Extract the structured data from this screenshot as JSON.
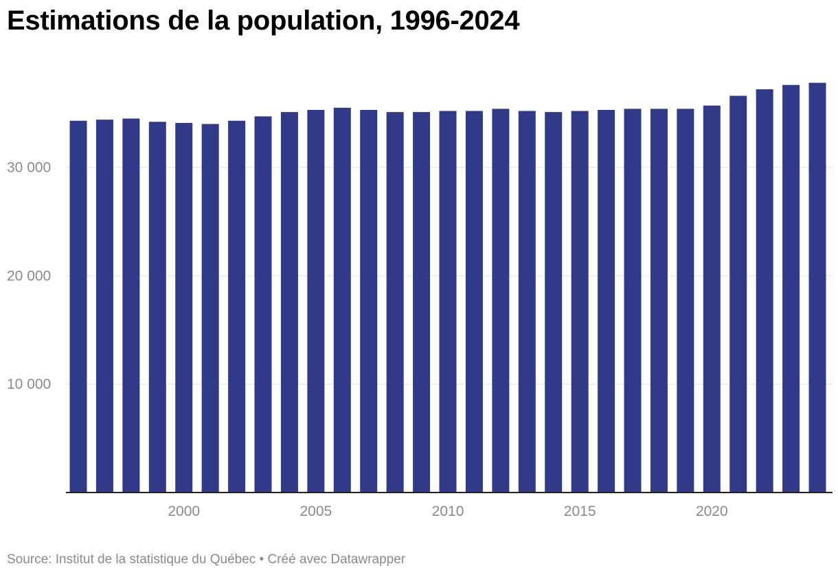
{
  "chart_data": {
    "type": "bar",
    "title": "Estimations de la population, 1996-2024",
    "categories": [
      1996,
      1997,
      1998,
      1999,
      2000,
      2001,
      2002,
      2003,
      2004,
      2005,
      2006,
      2007,
      2008,
      2009,
      2010,
      2011,
      2012,
      2013,
      2014,
      2015,
      2016,
      2017,
      2018,
      2019,
      2020,
      2021,
      2022,
      2023,
      2024
    ],
    "values": [
      34300,
      34400,
      34500,
      34200,
      34100,
      34000,
      34300,
      34700,
      35100,
      35300,
      35500,
      35300,
      35100,
      35100,
      35200,
      35200,
      35400,
      35200,
      35100,
      35200,
      35300,
      35400,
      35400,
      35400,
      35700,
      36600,
      37200,
      37600,
      37800
    ],
    "y_ticks": [
      10000,
      20000,
      30000
    ],
    "y_tick_labels": [
      "10 000",
      "20 000",
      "30 000"
    ],
    "x_ticks": [
      2000,
      2005,
      2010,
      2015,
      2020
    ],
    "x_tick_labels": [
      "2000",
      "2005",
      "2010",
      "2015",
      "2020"
    ],
    "ylim": [
      0,
      40000
    ],
    "xlabel": "",
    "ylabel": "",
    "grid": true,
    "bar_color": "#313a89"
  },
  "footer": {
    "source": "Source: Institut de la statistique du Québec • Créé avec Datawrapper"
  }
}
